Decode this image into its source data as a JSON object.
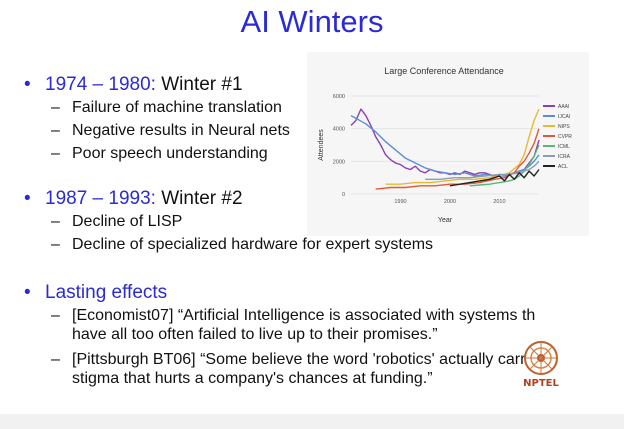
{
  "slide": {
    "title": "AI Winters",
    "winter1": {
      "years": "1974 – 1980:",
      "label": " Winter #1",
      "items": [
        "Failure of machine translation",
        "Negative results in Neural nets",
        "Poor speech understanding"
      ]
    },
    "winter2": {
      "years": "1987 – 1993:",
      "label": " Winter #2",
      "items": [
        "Decline of LISP",
        "Decline of specialized hardware for expert systems"
      ]
    },
    "lasting": {
      "label": "Lasting effects",
      "quote1": {
        "line1": "[Economist07] “Artificial Intelligence is associated with systems th",
        "line2": "have all too often failed to live up to their promises.”"
      },
      "quote2": {
        "line1": "[Pittsburgh BT06] “Some believe the word 'robotics' actually carr",
        "line2": "stigma that hurts a company's chances at funding.”"
      }
    },
    "logo_text": "NPTEL"
  },
  "colors": {
    "accent": "#2b2bd6"
  },
  "chart_data": {
    "type": "line",
    "title": "Large Conference Attendance",
    "xlabel": "Year",
    "ylabel": "Attendees",
    "xlim": [
      1980,
      2018
    ],
    "ylim": [
      0,
      6000
    ],
    "xticks": [
      "1990",
      "2000",
      "2010"
    ],
    "yticks": [
      "0",
      "2000",
      "4000",
      "6000"
    ],
    "legend_position": "right",
    "series": [
      {
        "name": "AAAI",
        "color": "#8e3fb0",
        "x": [
          1980,
          1981,
          1982,
          1983,
          1984,
          1985,
          1986,
          1987,
          1988,
          1989,
          1990,
          1991,
          1992,
          1993,
          1994,
          1995,
          1996,
          1997,
          1998,
          1999,
          2000,
          2001,
          2002,
          2003,
          2004,
          2005,
          2006,
          2007,
          2008,
          2009,
          2010,
          2011,
          2012,
          2013,
          2014,
          2015,
          2016,
          2017,
          2018
        ],
        "y": [
          4200,
          4500,
          5200,
          4800,
          4200,
          3500,
          3000,
          2400,
          2100,
          1900,
          1800,
          1600,
          1500,
          1700,
          1400,
          1300,
          1500,
          1400,
          1300,
          1300,
          1200,
          1300,
          1200,
          1400,
          1300,
          1200,
          1300,
          1300,
          1200,
          1100,
          1200,
          1100,
          1200,
          1300,
          1400,
          1500,
          1900,
          2300,
          3300
        ]
      },
      {
        "name": "IJCAI",
        "color": "#5b8ed6",
        "x": [
          1980,
          1983,
          1985,
          1987,
          1989,
          1991,
          1993,
          1995,
          1997,
          1999,
          2001,
          2003,
          2005,
          2007,
          2009,
          2011,
          2013,
          2015,
          2016,
          2017,
          2018
        ],
        "y": [
          4800,
          4300,
          3800,
          3200,
          2700,
          2200,
          1900,
          1600,
          1400,
          1300,
          1200,
          1300,
          1100,
          1200,
          1100,
          1100,
          1300,
          1500,
          1700,
          2000,
          2400
        ]
      },
      {
        "name": "NIPS",
        "color": "#e8b839",
        "x": [
          1987,
          1990,
          1993,
          1996,
          1999,
          2002,
          2005,
          2008,
          2010,
          2012,
          2014,
          2015,
          2016,
          2017,
          2018
        ],
        "y": [
          600,
          600,
          700,
          700,
          800,
          900,
          900,
          1000,
          1100,
          1300,
          1800,
          2400,
          3500,
          4500,
          5200
        ]
      },
      {
        "name": "CVPR",
        "color": "#e05a3a",
        "x": [
          1985,
          1988,
          1991,
          1994,
          1997,
          2000,
          2003,
          2006,
          2009,
          2011,
          2013,
          2014,
          2015,
          2016,
          2017,
          2018
        ],
        "y": [
          300,
          400,
          400,
          500,
          500,
          600,
          600,
          700,
          900,
          1000,
          1300,
          1700,
          2000,
          2500,
          3100,
          4000
        ]
      },
      {
        "name": "ICML",
        "color": "#57b87a",
        "x": [
          2004,
          2006,
          2008,
          2010,
          2012,
          2013,
          2014,
          2015,
          2016,
          2017,
          2018
        ],
        "y": [
          500,
          550,
          600,
          700,
          800,
          900,
          1100,
          1400,
          1800,
          2300,
          3000
        ]
      },
      {
        "name": "ICRA",
        "color": "#88a0b0",
        "x": [
          1995,
          1998,
          2001,
          2004,
          2007,
          2010,
          2012,
          2014,
          2015,
          2016,
          2017,
          2018
        ],
        "y": [
          900,
          900,
          1000,
          1000,
          1100,
          1200,
          1200,
          1300,
          1400,
          1500,
          1700,
          2000
        ]
      },
      {
        "name": "ACL",
        "color": "#222222",
        "x": [
          2000,
          2002,
          2004,
          2006,
          2008,
          2009,
          2010,
          2011,
          2012,
          2013,
          2014,
          2015,
          2016,
          2017,
          2018
        ],
        "y": [
          500,
          600,
          700,
          800,
          900,
          1000,
          1100,
          800,
          1200,
          900,
          1300,
          1000,
          1400,
          1100,
          1500
        ]
      }
    ]
  }
}
